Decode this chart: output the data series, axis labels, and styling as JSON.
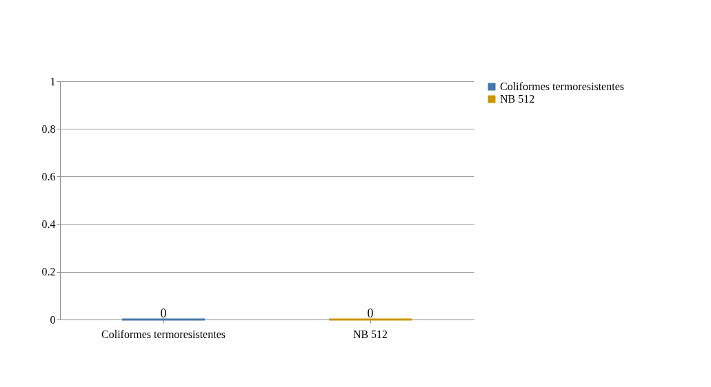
{
  "chart_data": {
    "type": "bar",
    "categories": [
      "Coliformes termoresistentes",
      "NB 512"
    ],
    "series": [
      {
        "name": "Coliformes termoresistentes",
        "color": "#4676a6",
        "values": [
          0,
          null
        ]
      },
      {
        "name": "NB 512",
        "color": "#c89600",
        "values": [
          null,
          0
        ]
      }
    ],
    "ylim": [
      0,
      1
    ],
    "yticks": [
      0,
      0.2,
      0.4,
      0.6,
      0.8,
      1
    ],
    "grid": "y",
    "legend": "right",
    "data_labels": true
  }
}
